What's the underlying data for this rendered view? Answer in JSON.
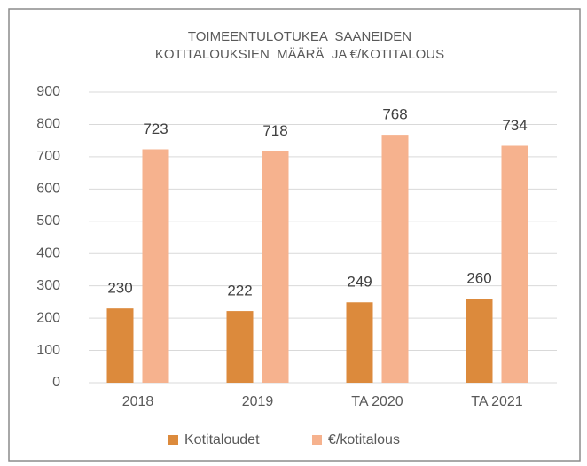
{
  "chart_data": {
    "type": "bar",
    "title": [
      "TOIMEENTULOTUKEA  SAANEIDEN",
      "KOTITALOUKSIEN  MÄÄRÄ  JA €/KOTITALOUS"
    ],
    "categories": [
      "2018",
      "2019",
      "TA 2020",
      "TA 2021"
    ],
    "series": [
      {
        "name": "Kotitaloudet",
        "color": "#dc8a3c",
        "values": [
          230,
          222,
          249,
          260
        ]
      },
      {
        "name": "€/kotitalous",
        "color": "#f6b28e",
        "values": [
          723,
          718,
          768,
          734
        ]
      }
    ],
    "ylim": [
      0,
      900
    ],
    "yticks": [
      0,
      100,
      200,
      300,
      400,
      500,
      600,
      700,
      800,
      900
    ],
    "grid": true,
    "legend": "bottom"
  }
}
